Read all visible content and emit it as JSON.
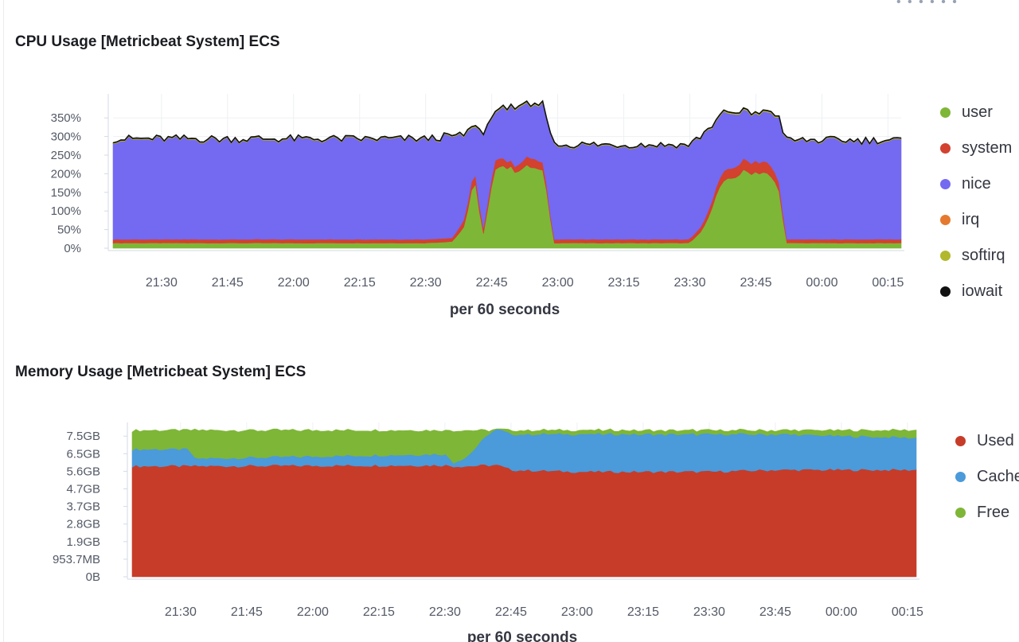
{
  "top_indicator": "• • • • • •",
  "cpu_panel": {
    "title": "CPU Usage [Metricbeat System] ECS",
    "chart_data": {
      "type": "area",
      "stacked": true,
      "title": "CPU Usage [Metricbeat System] ECS",
      "xlabel": "per 60 seconds",
      "ylabel": "",
      "x_range": [
        "21:19",
        "00:18"
      ],
      "x_ticks": [
        "21:30",
        "21:45",
        "22:00",
        "22:15",
        "22:30",
        "22:45",
        "23:00",
        "23:15",
        "23:30",
        "23:45",
        "00:00",
        "00:15"
      ],
      "y_ticks": [
        "0%",
        "50%",
        "100%",
        "150%",
        "200%",
        "250%",
        "300%",
        "350%"
      ],
      "ylim": [
        0,
        390
      ],
      "y_unit": "%",
      "grid": true,
      "legend_position": "right",
      "x": [
        "21:19",
        "22:30",
        "22:36",
        "22:39",
        "22:41",
        "22:43",
        "22:46",
        "22:50",
        "22:54",
        "22:57",
        "22:59",
        "23:30",
        "23:33",
        "23:37",
        "23:42",
        "23:47",
        "23:50",
        "23:52",
        "00:18"
      ],
      "series": [
        {
          "name": "user",
          "color": "#7eb637",
          "values": [
            14,
            14,
            18,
            60,
            200,
            30,
            230,
            210,
            220,
            200,
            14,
            14,
            50,
            170,
            205,
            205,
            170,
            14,
            14
          ]
        },
        {
          "name": "system",
          "color": "#d3412f",
          "values": [
            10,
            10,
            10,
            20,
            25,
            15,
            25,
            15,
            25,
            20,
            10,
            10,
            15,
            25,
            30,
            30,
            25,
            10,
            10
          ]
        },
        {
          "name": "nice",
          "color": "#7469f1",
          "values": [
            268,
            268,
            272,
            220,
            110,
            255,
            120,
            155,
            135,
            160,
            252,
            252,
            240,
            160,
            130,
            130,
            160,
            264,
            264
          ]
        },
        {
          "name": "irq",
          "color": "#e57a2e",
          "values": [
            0,
            0,
            0,
            0,
            0,
            0,
            0,
            0,
            0,
            0,
            0,
            0,
            0,
            0,
            0,
            0,
            0,
            0,
            0
          ]
        },
        {
          "name": "softirq",
          "color": "#b2b82b",
          "values": [
            2,
            2,
            2,
            3,
            3,
            2,
            3,
            3,
            3,
            3,
            2,
            2,
            2,
            3,
            3,
            3,
            3,
            2,
            2
          ]
        },
        {
          "name": "iowait",
          "color": "#111111",
          "values": [
            1,
            1,
            1,
            1,
            1,
            1,
            1,
            1,
            1,
            1,
            1,
            1,
            1,
            1,
            1,
            1,
            1,
            1,
            1
          ]
        }
      ]
    }
  },
  "memory_panel": {
    "title": "Memory Usage [Metricbeat System] ECS",
    "chart_data": {
      "type": "area",
      "stacked": true,
      "title": "Memory Usage [Metricbeat System] ECS",
      "xlabel": "per 60 seconds",
      "ylabel": "",
      "x_range": [
        "21:19",
        "00:17"
      ],
      "x_ticks": [
        "21:30",
        "21:45",
        "22:00",
        "22:15",
        "22:30",
        "22:45",
        "23:00",
        "23:15",
        "23:30",
        "23:45",
        "00:00",
        "00:15"
      ],
      "y_ticks": [
        "0B",
        "953.7MB",
        "1.9GB",
        "2.8GB",
        "3.7GB",
        "4.7GB",
        "5.6GB",
        "6.5GB",
        "7.5GB"
      ],
      "y_unit": "GB",
      "ylim": [
        0,
        7.8
      ],
      "grid": true,
      "legend_position": "right",
      "x": [
        "21:19",
        "21:32",
        "21:33",
        "22:30",
        "22:32",
        "22:35",
        "22:40",
        "22:42",
        "22:45",
        "23:00",
        "23:30",
        "23:45",
        "00:17"
      ],
      "series": [
        {
          "name": "Used",
          "color": "#c63c29",
          "values": [
            5.9,
            5.9,
            5.9,
            5.95,
            5.9,
            5.9,
            5.95,
            5.95,
            5.7,
            5.6,
            5.6,
            5.7,
            5.7
          ]
        },
        {
          "name": "Cached",
          "color": "#4b9ada",
          "values": [
            0.9,
            0.9,
            0.4,
            0.6,
            0.2,
            0.5,
            1.7,
            1.9,
            1.9,
            2.0,
            2.0,
            1.9,
            1.7
          ]
        },
        {
          "name": "Free",
          "color": "#7eb637",
          "values": [
            1.0,
            1.0,
            1.5,
            1.25,
            1.7,
            1.4,
            0.15,
            0.0,
            0.2,
            0.2,
            0.2,
            0.2,
            0.4
          ]
        }
      ]
    }
  }
}
